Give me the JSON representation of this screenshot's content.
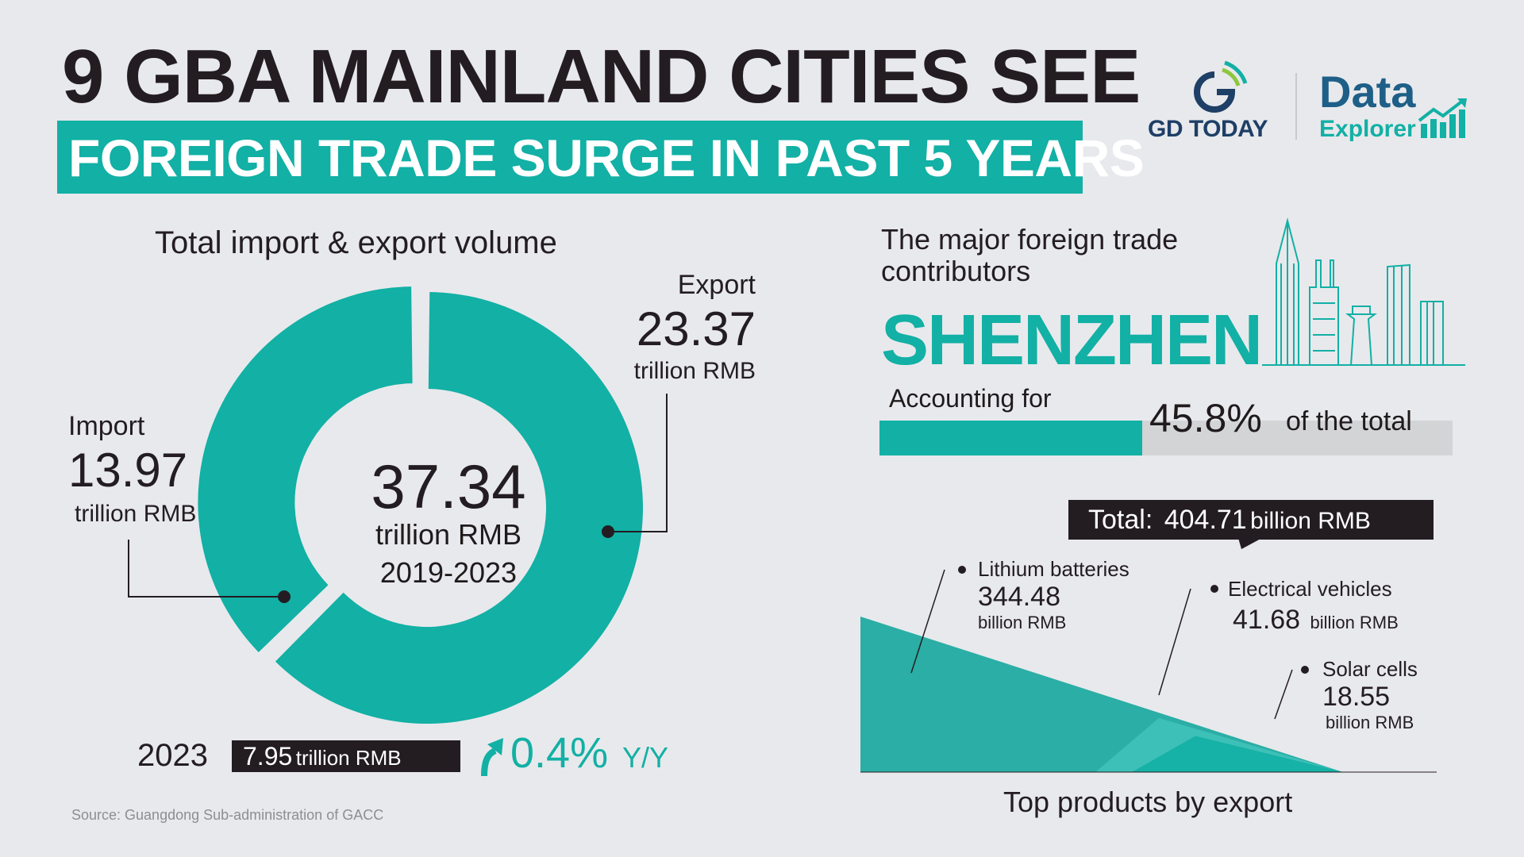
{
  "header": {
    "title_line1": "9 GBA MAINLAND CITIES SEE",
    "title_line2": "FOREIGN TRADE SURGE IN PAST 5 YEARS"
  },
  "logos": {
    "gd_today": "GD TODAY",
    "data": "Data",
    "explorer": "Explorer"
  },
  "colors": {
    "accent": "#12b0a5",
    "accent_light": "#3fc1b8",
    "accent_mid": "#2aaea5",
    "dark": "#231d22",
    "navy": "#1e3f66",
    "bar_bg": "#d3d4d6"
  },
  "volume": {
    "heading": "Total import & export volume",
    "center_value": "37.34",
    "center_unit": "trillion RMB",
    "center_period": "2019-2023",
    "export_name": "Export",
    "export_value": "23.37",
    "export_unit": "trillion RMB",
    "import_name": "Import",
    "import_value": "13.97",
    "import_unit": "trillion RMB",
    "year": "2023",
    "year_value": "7.95",
    "year_value_unit": "trillion RMB",
    "growth_pct": "0.4%",
    "growth_label": "Y/Y"
  },
  "contributors": {
    "heading_line1": "The major foreign trade",
    "heading_line2": "contributors",
    "city": "SHENZHEN",
    "accounting_label": "Accounting for",
    "share_pct": "45.8%",
    "share_suffix": "of the total"
  },
  "products": {
    "total_label": "Total:",
    "total_value": "404.71",
    "total_unit": "billion RMB",
    "footer": "Top products by export",
    "items": [
      {
        "name": "Lithium batteries",
        "value": "344.48",
        "unit": "billion RMB"
      },
      {
        "name": "Electrical vehicles",
        "value": "41.68",
        "unit": "billion RMB"
      },
      {
        "name": "Solar cells",
        "value": "18.55",
        "unit": "billion RMB"
      }
    ]
  },
  "source": "Source: Guangdong Sub-administration of GACC",
  "chart_data": [
    {
      "type": "pie",
      "title": "Total import & export volume",
      "unit": "trillion RMB",
      "total": 37.34,
      "period": "2019-2023",
      "series": [
        {
          "name": "Export",
          "value": 23.37
        },
        {
          "name": "Import",
          "value": 13.97
        }
      ]
    },
    {
      "type": "bar",
      "title": "The major foreign trade contributors",
      "categories": [
        "SHENZHEN"
      ],
      "values": [
        45.8
      ],
      "unit": "%",
      "ylim": [
        0,
        100
      ]
    },
    {
      "type": "area",
      "title": "Top products by export",
      "unit": "billion RMB",
      "total": 404.71,
      "categories": [
        "Lithium batteries",
        "Electrical vehicles",
        "Solar cells"
      ],
      "values": [
        344.48,
        41.68,
        18.55
      ]
    }
  ]
}
